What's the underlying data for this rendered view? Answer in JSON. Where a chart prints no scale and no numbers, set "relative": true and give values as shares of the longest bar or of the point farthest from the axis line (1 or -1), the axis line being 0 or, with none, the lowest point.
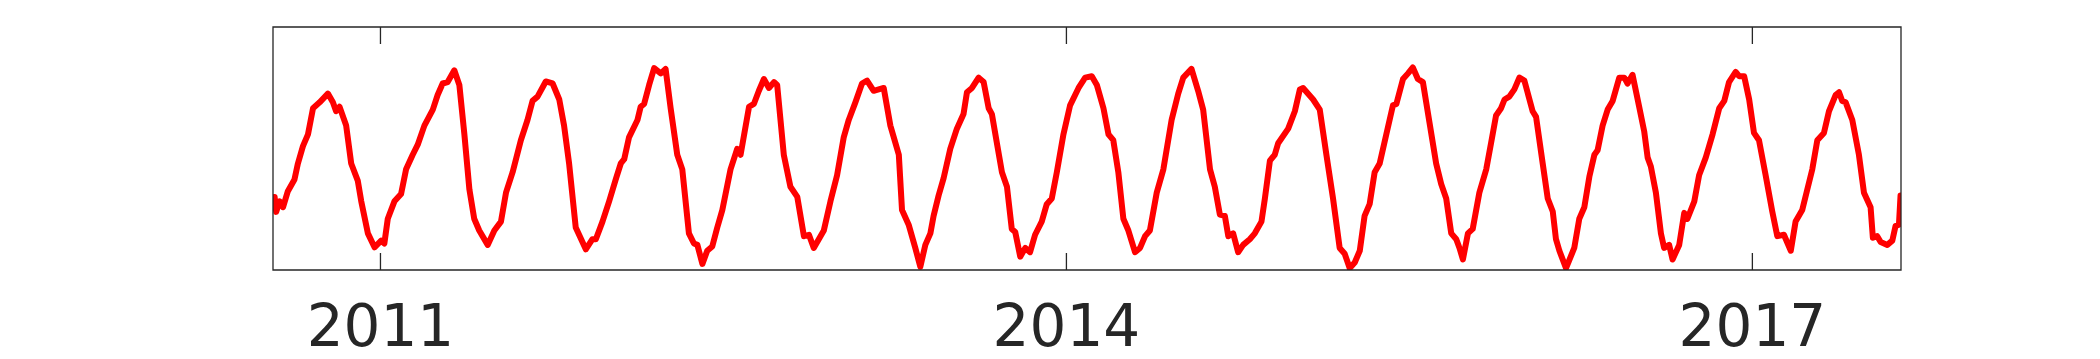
{
  "chart_data": {
    "type": "line",
    "relative": true,
    "color": "#ff0000",
    "marker": "none",
    "xlim": [
      2010.53,
      2017.65
    ],
    "xticks": [
      2011,
      2014,
      2017
    ],
    "x": [
      2010.537,
      2010.544,
      2010.559,
      2010.574,
      2010.595,
      2010.624,
      2010.639,
      2010.661,
      2010.683,
      2010.705,
      2010.734,
      2010.77,
      2010.792,
      2010.806,
      2010.821,
      2010.85,
      2010.872,
      2010.901,
      2010.916,
      2010.945,
      2010.974,
      2011.003,
      2011.017,
      2011.032,
      2011.061,
      2011.09,
      2011.112,
      2011.141,
      2011.163,
      2011.192,
      2011.229,
      2011.25,
      2011.272,
      2011.294,
      2011.323,
      2011.345,
      2011.367,
      2011.389,
      2011.41,
      2011.432,
      2011.469,
      2011.498,
      2011.527,
      2011.549,
      2011.578,
      2011.614,
      2011.643,
      2011.665,
      2011.687,
      2011.723,
      2011.753,
      2011.782,
      2011.803,
      2011.825,
      2011.854,
      2011.898,
      2011.927,
      2011.942,
      2011.971,
      2012.0,
      2012.029,
      2012.051,
      2012.066,
      2012.087,
      2012.124,
      2012.138,
      2012.153,
      2012.175,
      2012.197,
      2012.226,
      2012.247,
      2012.269,
      2012.298,
      2012.32,
      2012.349,
      2012.371,
      2012.386,
      2012.408,
      2012.429,
      2012.451,
      2012.473,
      2012.495,
      2012.531,
      2012.56,
      2012.575,
      2012.612,
      2012.633,
      2012.655,
      2012.677,
      2012.699,
      2012.721,
      2012.735,
      2012.764,
      2012.793,
      2012.823,
      2012.852,
      2012.874,
      2012.895,
      2012.917,
      2012.939,
      2012.968,
      2012.997,
      2013.026,
      2013.048,
      2013.077,
      2013.106,
      2013.128,
      2013.157,
      2013.179,
      2013.201,
      2013.23,
      2013.245,
      2013.267,
      2013.281,
      2013.31,
      2013.339,
      2013.361,
      2013.383,
      2013.405,
      2013.419,
      2013.441,
      2013.463,
      2013.492,
      2013.521,
      2013.55,
      2013.565,
      2013.587,
      2013.616,
      2013.638,
      2013.66,
      2013.674,
      2013.696,
      2013.718,
      2013.74,
      2013.761,
      2013.776,
      2013.798,
      2013.82,
      2013.841,
      2013.863,
      2013.892,
      2013.914,
      2013.936,
      2013.958,
      2013.987,
      2014.016,
      2014.053,
      2014.082,
      2014.111,
      2014.133,
      2014.162,
      2014.184,
      2014.205,
      2014.227,
      2014.249,
      2014.271,
      2014.3,
      2014.322,
      2014.344,
      2014.365,
      2014.395,
      2014.424,
      2014.46,
      2014.489,
      2014.511,
      2014.547,
      2014.576,
      2014.598,
      2014.628,
      2014.649,
      2014.671,
      2014.693,
      2014.708,
      2014.729,
      2014.751,
      2014.773,
      2014.802,
      2014.824,
      2014.853,
      2014.868,
      2014.89,
      2014.911,
      2014.926,
      2014.97,
      2014.999,
      2015.021,
      2015.035,
      2015.079,
      2015.108,
      2015.137,
      2015.166,
      2015.195,
      2015.217,
      2015.239,
      2015.261,
      2015.283,
      2015.304,
      2015.326,
      2015.348,
      2015.37,
      2015.399,
      2015.428,
      2015.443,
      2015.472,
      2015.494,
      2015.515,
      2015.537,
      2015.559,
      2015.588,
      2015.617,
      2015.639,
      2015.661,
      2015.683,
      2015.705,
      2015.719,
      2015.734,
      2015.756,
      2015.777,
      2015.806,
      2015.836,
      2015.857,
      2015.879,
      2015.901,
      2015.916,
      2015.937,
      2015.959,
      2015.981,
      2016.003,
      2016.039,
      2016.054,
      2016.083,
      2016.105,
      2016.127,
      2016.141,
      2016.156,
      2016.185,
      2016.221,
      2016.243,
      2016.265,
      2016.287,
      2016.309,
      2016.323,
      2016.345,
      2016.367,
      2016.389,
      2016.418,
      2016.44,
      2016.454,
      2016.476,
      2016.505,
      2016.527,
      2016.542,
      2016.556,
      2016.578,
      2016.6,
      2016.614,
      2016.636,
      2016.651,
      2016.68,
      2016.702,
      2016.716,
      2016.746,
      2016.767,
      2016.796,
      2016.826,
      2016.855,
      2016.877,
      2016.898,
      2016.927,
      2016.942,
      2016.964,
      2016.986,
      2017.007,
      2017.029,
      2017.058,
      2017.087,
      2017.109,
      2017.138,
      2017.168,
      2017.189,
      2017.218,
      2017.24,
      2017.262,
      2017.284,
      2017.313,
      2017.335,
      2017.364,
      2017.379,
      2017.393,
      2017.408,
      2017.437,
      2017.466,
      2017.488,
      2017.517,
      2017.527,
      2017.546,
      2017.561,
      2017.59,
      2017.612,
      2017.626,
      2017.641,
      2017.648
    ],
    "values": [
      0.361,
      0.287,
      0.339,
      0.31,
      0.389,
      0.447,
      0.526,
      0.612,
      0.67,
      0.799,
      0.828,
      0.871,
      0.828,
      0.784,
      0.806,
      0.713,
      0.526,
      0.44,
      0.339,
      0.181,
      0.112,
      0.145,
      0.131,
      0.253,
      0.339,
      0.375,
      0.497,
      0.569,
      0.619,
      0.713,
      0.792,
      0.864,
      0.921,
      0.928,
      0.986,
      0.914,
      0.67,
      0.397,
      0.253,
      0.195,
      0.124,
      0.195,
      0.239,
      0.382,
      0.483,
      0.641,
      0.741,
      0.835,
      0.856,
      0.931,
      0.921,
      0.842,
      0.713,
      0.526,
      0.21,
      0.102,
      0.152,
      0.152,
      0.239,
      0.339,
      0.447,
      0.526,
      0.547,
      0.655,
      0.741,
      0.806,
      0.82,
      0.914,
      0.997,
      0.971,
      0.993,
      0.799,
      0.569,
      0.497,
      0.181,
      0.131,
      0.124,
      0.03,
      0.095,
      0.116,
      0.21,
      0.296,
      0.497,
      0.598,
      0.569,
      0.806,
      0.82,
      0.885,
      0.943,
      0.899,
      0.928,
      0.914,
      0.569,
      0.411,
      0.361,
      0.167,
      0.174,
      0.109,
      0.152,
      0.195,
      0.339,
      0.468,
      0.655,
      0.741,
      0.828,
      0.921,
      0.935,
      0.885,
      0.892,
      0.899,
      0.713,
      0.655,
      0.569,
      0.296,
      0.224,
      0.109,
      0.016,
      0.124,
      0.181,
      0.267,
      0.368,
      0.454,
      0.598,
      0.698,
      0.77,
      0.878,
      0.899,
      0.95,
      0.928,
      0.799,
      0.77,
      0.626,
      0.483,
      0.411,
      0.203,
      0.188,
      0.066,
      0.109,
      0.088,
      0.174,
      0.239,
      0.325,
      0.353,
      0.483,
      0.67,
      0.813,
      0.899,
      0.95,
      0.957,
      0.914,
      0.799,
      0.67,
      0.641,
      0.483,
      0.253,
      0.195,
      0.088,
      0.109,
      0.167,
      0.195,
      0.382,
      0.497,
      0.741,
      0.871,
      0.95,
      0.993,
      0.885,
      0.792,
      0.497,
      0.411,
      0.274,
      0.267,
      0.167,
      0.181,
      0.088,
      0.124,
      0.152,
      0.181,
      0.239,
      0.353,
      0.54,
      0.569,
      0.626,
      0.698,
      0.784,
      0.892,
      0.899,
      0.842,
      0.792,
      0.569,
      0.353,
      0.109,
      0.08,
      0.009,
      0.037,
      0.095,
      0.267,
      0.325,
      0.483,
      0.526,
      0.67,
      0.813,
      0.82,
      0.943,
      0.971,
      1.0,
      0.943,
      0.928,
      0.727,
      0.526,
      0.425,
      0.353,
      0.181,
      0.152,
      0.109,
      0.052,
      0.181,
      0.203,
      0.382,
      0.497,
      0.626,
      0.763,
      0.799,
      0.842,
      0.856,
      0.892,
      0.95,
      0.935,
      0.784,
      0.756,
      0.526,
      0.353,
      0.289,
      0.152,
      0.095,
      0.009,
      0.109,
      0.253,
      0.31,
      0.461,
      0.569,
      0.591,
      0.713,
      0.792,
      0.835,
      0.95,
      0.95,
      0.921,
      0.964,
      0.806,
      0.684,
      0.555,
      0.511,
      0.382,
      0.181,
      0.109,
      0.124,
      0.052,
      0.124,
      0.282,
      0.253,
      0.339,
      0.468,
      0.555,
      0.67,
      0.799,
      0.835,
      0.928,
      0.978,
      0.957,
      0.957,
      0.842,
      0.677,
      0.641,
      0.468,
      0.289,
      0.167,
      0.174,
      0.095,
      0.239,
      0.296,
      0.397,
      0.497,
      0.641,
      0.677,
      0.784,
      0.864,
      0.878,
      0.835,
      0.828,
      0.741,
      0.569,
      0.382,
      0.31,
      0.159,
      0.167,
      0.138,
      0.124,
      0.145,
      0.217,
      0.224,
      0.368
    ]
  }
}
